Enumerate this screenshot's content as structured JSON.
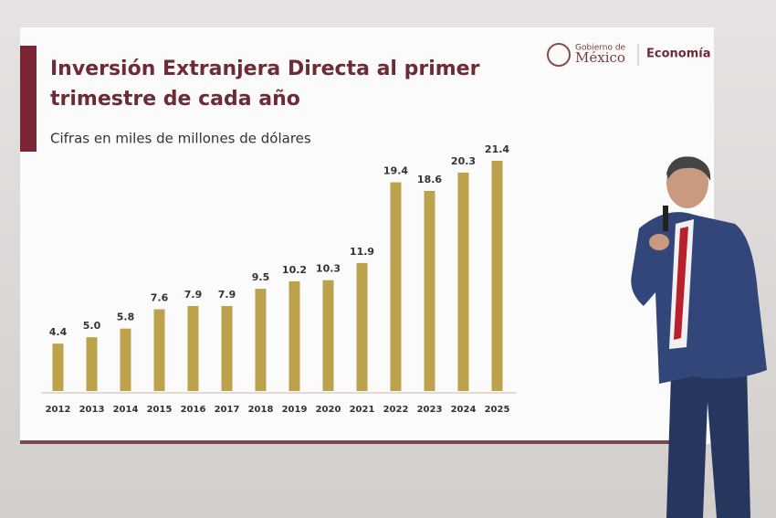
{
  "slide": {
    "logo_gobierno": "Gobierno de",
    "logo_mexico": "México",
    "logo_economia": "Economía"
  },
  "chart_data": {
    "type": "bar",
    "title": "Inversión Extranjera Directa al primer",
    "title_line2": "trimestre de cada año",
    "subtitle": "Cifras en miles de millones de dólares",
    "categories": [
      "2012",
      "2013",
      "2014",
      "2015",
      "2016",
      "2017",
      "2018",
      "2019",
      "2020",
      "2021",
      "2022",
      "2023",
      "2024",
      "2025"
    ],
    "values": [
      4.4,
      5.0,
      5.8,
      7.6,
      7.9,
      7.9,
      9.5,
      10.2,
      10.3,
      11.9,
      19.4,
      18.6,
      20.3,
      21.4
    ],
    "value_labels": [
      "4.4",
      "5.0",
      "5.8",
      "7.6",
      "7.9",
      "7.9",
      "9.5",
      "10.2",
      "10.3",
      "11.9",
      "19.4",
      "18.6",
      "20.3",
      "21.4"
    ],
    "color": "#bda24c"
  }
}
